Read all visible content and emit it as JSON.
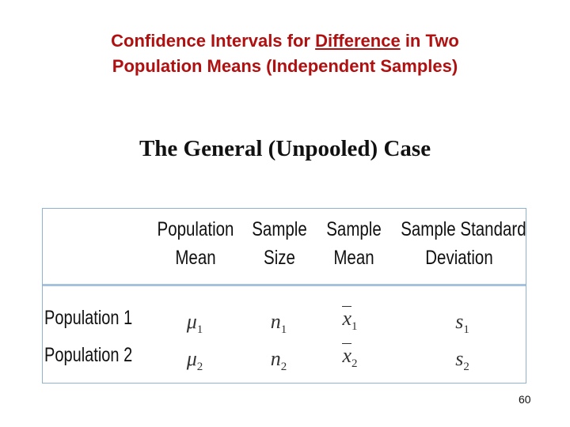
{
  "slide": {
    "title_line1_prefix": "Confidence Intervals for ",
    "title_line1_emph": "Difference",
    "title_line1_suffix": " in Two",
    "title_line2": "Population Means (Independent Samples)",
    "subtitle": "The General (Unpooled) Case",
    "page_number": "60"
  },
  "table": {
    "headers": [
      {
        "line1": "Population",
        "line2": "Mean"
      },
      {
        "line1": "Sample",
        "line2": "Size"
      },
      {
        "line1": "Sample",
        "line2": "Mean"
      },
      {
        "line1": "Sample Standard",
        "line2": "Deviation"
      }
    ],
    "rows": [
      {
        "label": "Population 1",
        "mean_sym": "μ",
        "size_sym": "n",
        "smean_sym": "x",
        "sd_sym": "s",
        "sub": "1"
      },
      {
        "label": "Population 2",
        "mean_sym": "μ",
        "size_sym": "n",
        "smean_sym": "x",
        "sd_sym": "s",
        "sub": "2"
      }
    ]
  }
}
